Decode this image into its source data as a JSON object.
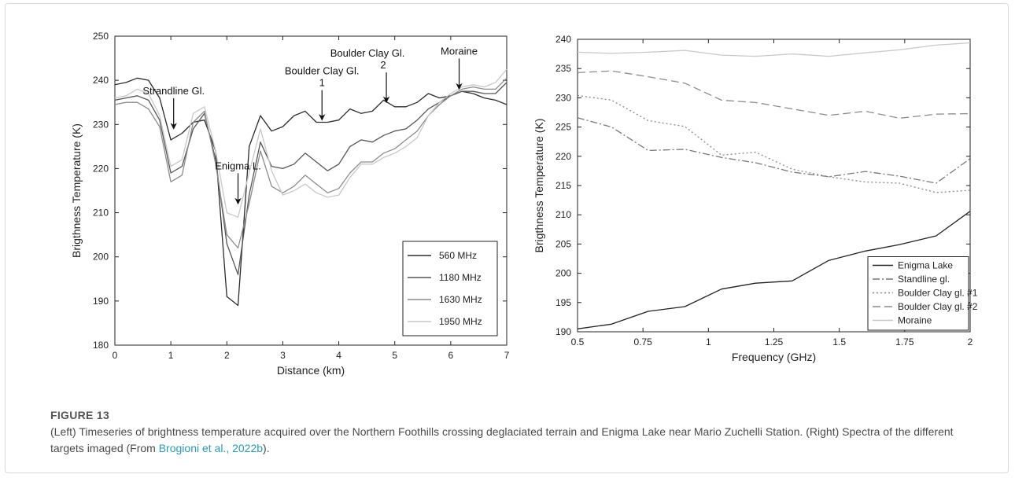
{
  "figure": {
    "label": "FIGURE 13",
    "caption_before": "(Left) Timeseries of brightness temperature acquired over the Northern Foothills crossing deglaciated terrain and Enigma Lake near Mario Zuchelli Station. (Right) Spectra of the different targets imaged (From ",
    "caption_link": "Brogioni et al., 2022b",
    "caption_after": ")."
  },
  "chart_data": [
    {
      "type": "line",
      "xlabel": "Distance (km)",
      "ylabel": "Brigthness Temperature (K)",
      "xlim": [
        0,
        7
      ],
      "ylim": [
        180,
        250
      ],
      "xticks": [
        0,
        1,
        2,
        3,
        4,
        5,
        6,
        7
      ],
      "yticks": [
        180,
        190,
        200,
        210,
        220,
        230,
        240,
        250
      ],
      "grid": false,
      "legend_position": "bottom-right",
      "annotations": [
        {
          "lines": [
            "Strandline Gl."
          ],
          "x": 1.05,
          "y": 229
        },
        {
          "lines": [
            "Enigma L."
          ],
          "x": 2.2,
          "y": 212
        },
        {
          "lines": [
            "Boulder Clay Gl.",
            "1"
          ],
          "x": 3.7,
          "y": 231
        },
        {
          "lines": [
            "Boulder Clay Gl.",
            "2"
          ],
          "x": 4.85,
          "y": 235
        },
        {
          "lines": [
            "Moraine"
          ],
          "x": 6.15,
          "y": 238
        }
      ],
      "series": [
        {
          "name": "560 MHz",
          "color": "#2b2b2b",
          "x": [
            0,
            0.2,
            0.4,
            0.6,
            0.8,
            1,
            1.2,
            1.4,
            1.6,
            1.8,
            2,
            2.2,
            2.4,
            2.6,
            2.8,
            3,
            3.2,
            3.4,
            3.6,
            3.8,
            4,
            4.2,
            4.4,
            4.6,
            4.8,
            5,
            5.2,
            5.4,
            5.6,
            5.8,
            6,
            6.2,
            6.4,
            6.6,
            6.8,
            7
          ],
          "y": [
            239,
            239.5,
            240.5,
            240,
            236,
            226.5,
            228,
            230.5,
            231,
            224,
            191,
            189,
            225,
            232,
            228.5,
            229.5,
            232,
            233,
            230.5,
            230.5,
            231,
            233.5,
            232.5,
            233,
            235.5,
            234,
            234,
            235,
            237,
            236,
            236.5,
            237.5,
            237,
            236,
            235.5,
            234.5
          ]
        },
        {
          "name": "1180 MHz",
          "color": "#555555",
          "x": [
            0,
            0.2,
            0.4,
            0.6,
            0.8,
            1,
            1.2,
            1.4,
            1.6,
            1.8,
            2,
            2.2,
            2.4,
            2.6,
            2.8,
            3,
            3.2,
            3.4,
            3.6,
            3.8,
            4,
            4.2,
            4.4,
            4.6,
            4.8,
            5,
            5.2,
            5.4,
            5.6,
            5.8,
            6,
            6.2,
            6.4,
            6.6,
            6.8,
            7
          ],
          "y": [
            235.5,
            236,
            236.5,
            235.5,
            231,
            219,
            220.5,
            229,
            232.5,
            222,
            203,
            196,
            214,
            226,
            220.5,
            220,
            221,
            223.5,
            221.5,
            219.5,
            221,
            225,
            226.5,
            226,
            227.5,
            228.5,
            229,
            231,
            233.5,
            235,
            236.5,
            237.5,
            237.5,
            237,
            237,
            239.5
          ]
        },
        {
          "name": "1630 MHz",
          "color": "#8c8c8c",
          "x": [
            0,
            0.2,
            0.4,
            0.6,
            0.8,
            1,
            1.2,
            1.4,
            1.6,
            1.8,
            2,
            2.2,
            2.4,
            2.6,
            2.8,
            3,
            3.2,
            3.4,
            3.6,
            3.8,
            4,
            4.2,
            4.4,
            4.6,
            4.8,
            5,
            5.2,
            5.4,
            5.6,
            5.8,
            6,
            6.2,
            6.4,
            6.6,
            6.8,
            7
          ],
          "y": [
            234.5,
            235,
            235,
            233.5,
            229.5,
            217,
            218.5,
            230.5,
            233,
            221,
            205,
            202,
            212,
            224,
            216,
            214.5,
            216,
            218.5,
            216.5,
            214.5,
            215.5,
            219,
            221.5,
            221.5,
            223.5,
            224.5,
            226.5,
            228.5,
            232,
            234.5,
            236.5,
            238,
            238.5,
            238,
            238,
            240.5
          ]
        },
        {
          "name": "1950 MHz",
          "color": "#c8c8c8",
          "x": [
            0,
            0.2,
            0.4,
            0.6,
            0.8,
            1,
            1.2,
            1.4,
            1.6,
            1.8,
            2,
            2.2,
            2.4,
            2.6,
            2.8,
            3,
            3.2,
            3.4,
            3.6,
            3.8,
            4,
            4.2,
            4.4,
            4.6,
            4.8,
            5,
            5.2,
            5.4,
            5.6,
            5.8,
            6,
            6.2,
            6.4,
            6.6,
            6.8,
            7
          ],
          "y": [
            236,
            236.5,
            238,
            237,
            232,
            220.5,
            222,
            232.5,
            234,
            224,
            210,
            209,
            219,
            229,
            219.5,
            214,
            215,
            216.5,
            214.5,
            213.5,
            214,
            218,
            221,
            221,
            222.5,
            223.5,
            225,
            227,
            232,
            235,
            237,
            238.5,
            239,
            238.5,
            239.5,
            242.5
          ]
        }
      ]
    },
    {
      "type": "line",
      "xlabel": "Frequency (GHz)",
      "ylabel": "Brigthness Temperature (K)",
      "xlim": [
        0.5,
        2
      ],
      "ylim": [
        190,
        240
      ],
      "xticks": [
        0.5,
        0.75,
        1,
        1.25,
        1.5,
        1.75,
        2
      ],
      "xticklabels": [
        "0.5",
        "0.75",
        "1",
        "1.25",
        "1.5",
        "1.75",
        "2"
      ],
      "yticks": [
        190,
        195,
        200,
        205,
        210,
        215,
        220,
        225,
        230,
        235,
        240
      ],
      "grid": false,
      "legend_position": "bottom-right",
      "series": [
        {
          "name": "Enigma Lake",
          "color": "#222222",
          "dash": "",
          "x": [
            0.5,
            0.63,
            0.77,
            0.91,
            1.05,
            1.18,
            1.32,
            1.46,
            1.6,
            1.73,
            1.87,
            2.0
          ],
          "y": [
            190.5,
            191.3,
            193.5,
            194.3,
            197.3,
            198.3,
            198.7,
            202.2,
            203.8,
            204.9,
            206.4,
            210.6
          ]
        },
        {
          "name": "Standline gl.",
          "color": "#777777",
          "dash": "9,3,2,3",
          "x": [
            0.5,
            0.63,
            0.77,
            0.91,
            1.05,
            1.18,
            1.32,
            1.46,
            1.6,
            1.73,
            1.87,
            2.0
          ],
          "y": [
            226.6,
            225,
            221,
            221.2,
            219.8,
            218.9,
            217.3,
            216.5,
            217.4,
            216.6,
            215.4,
            219.6
          ]
        },
        {
          "name": "Boulder Clay gl. #1",
          "color": "#888888",
          "dash": "2,3",
          "x": [
            0.5,
            0.63,
            0.77,
            0.91,
            1.05,
            1.18,
            1.32,
            1.46,
            1.6,
            1.73,
            1.87,
            2.0
          ],
          "y": [
            230.4,
            229.6,
            226.1,
            225.1,
            220.2,
            220.7,
            217.8,
            216.5,
            215.6,
            215.4,
            213.8,
            214.2
          ]
        },
        {
          "name": "Boulder Clay gl. #2",
          "color": "#8c8c8c",
          "dash": "10,5",
          "x": [
            0.5,
            0.63,
            0.77,
            0.91,
            1.05,
            1.18,
            1.32,
            1.46,
            1.6,
            1.73,
            1.87,
            2.0
          ],
          "y": [
            234.3,
            234.6,
            233.6,
            232.5,
            229.6,
            229.2,
            228.1,
            227,
            227.7,
            226.5,
            227.2,
            227.3
          ]
        },
        {
          "name": "Moraine",
          "color": "#c8c8c8",
          "dash": "",
          "x": [
            0.5,
            0.63,
            0.77,
            0.91,
            1.05,
            1.18,
            1.32,
            1.46,
            1.6,
            1.73,
            1.87,
            2.0
          ],
          "y": [
            237.8,
            237.6,
            237.8,
            238.1,
            237.3,
            237.1,
            237.5,
            237.1,
            237.7,
            238.2,
            239,
            239.4
          ]
        }
      ]
    }
  ]
}
